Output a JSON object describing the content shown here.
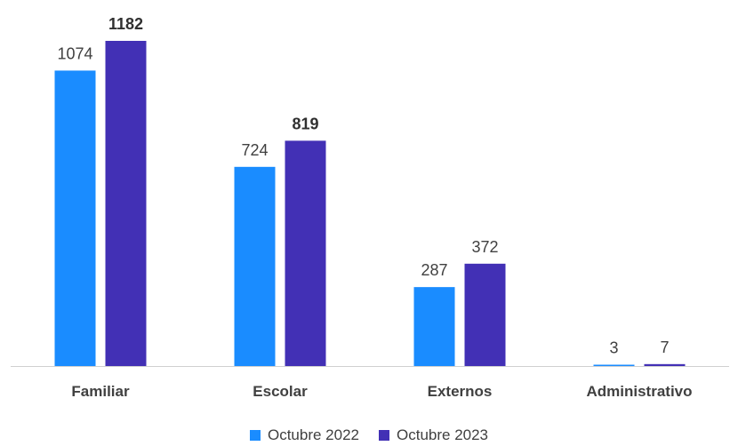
{
  "chart_data": {
    "type": "bar",
    "categories": [
      "Familiar",
      "Escolar",
      "Externos",
      "Administrativo"
    ],
    "series": [
      {
        "name": "Octubre 2022",
        "values": [
          1074,
          724,
          287,
          3
        ],
        "color": "#1a8cff"
      },
      {
        "name": "Octubre 2023",
        "values": [
          1182,
          819,
          372,
          7
        ],
        "color": "#4230b5"
      }
    ],
    "bold_labels": [
      [
        false,
        false,
        false,
        false
      ],
      [
        true,
        true,
        false,
        false
      ]
    ],
    "ylim": [
      0,
      1300
    ],
    "grid": false,
    "legend_position": "bottom",
    "title": "",
    "xlabel": "",
    "ylabel": ""
  }
}
